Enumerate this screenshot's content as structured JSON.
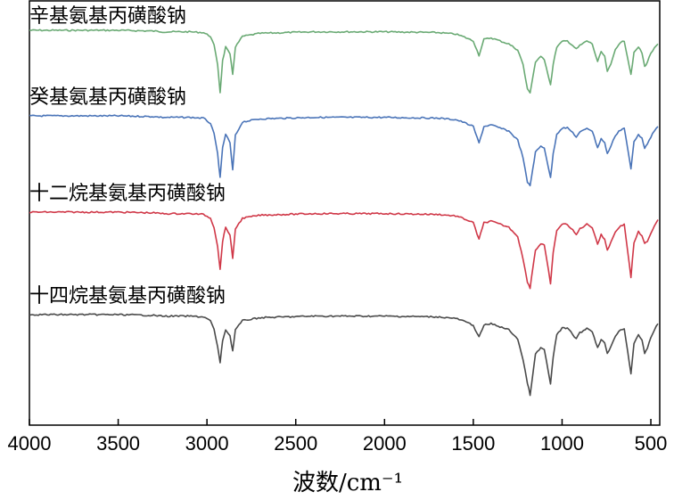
{
  "chart_data": {
    "type": "line",
    "title": "",
    "xlabel": "波数/cm⁻¹",
    "ylabel": "",
    "xlim": [
      4000,
      450
    ],
    "x_reversed": true,
    "x_ticks": [
      4000,
      3500,
      3000,
      2500,
      2000,
      1500,
      1000,
      500
    ],
    "y_ticks_shown": false,
    "grid": false,
    "legend": "inline labels above each trace",
    "series": [
      {
        "name": "辛基氨基丙磺酸钠",
        "color": "#6aaa74",
        "baseline": 0.0,
        "points": [
          [
            4000,
            0
          ],
          [
            3500,
            0
          ],
          [
            3300,
            -1
          ],
          [
            3250,
            -2
          ],
          [
            3100,
            -2
          ],
          [
            3020,
            -3
          ],
          [
            2980,
            -8
          ],
          [
            2960,
            -20
          ],
          [
            2940,
            -45
          ],
          [
            2926,
            -82
          ],
          [
            2912,
            -40
          ],
          [
            2895,
            -22
          ],
          [
            2870,
            -32
          ],
          [
            2855,
            -58
          ],
          [
            2840,
            -22
          ],
          [
            2800,
            -8
          ],
          [
            2700,
            -4
          ],
          [
            2400,
            -2
          ],
          [
            2000,
            -2
          ],
          [
            1700,
            -3
          ],
          [
            1600,
            -5
          ],
          [
            1560,
            -8
          ],
          [
            1500,
            -14
          ],
          [
            1468,
            -33
          ],
          [
            1440,
            -12
          ],
          [
            1400,
            -10
          ],
          [
            1350,
            -14
          ],
          [
            1300,
            -18
          ],
          [
            1250,
            -26
          ],
          [
            1220,
            -45
          ],
          [
            1195,
            -78
          ],
          [
            1180,
            -82
          ],
          [
            1165,
            -62
          ],
          [
            1150,
            -42
          ],
          [
            1120,
            -35
          ],
          [
            1100,
            -38
          ],
          [
            1065,
            -72
          ],
          [
            1050,
            -45
          ],
          [
            1030,
            -22
          ],
          [
            1000,
            -15
          ],
          [
            970,
            -14
          ],
          [
            940,
            -20
          ],
          [
            920,
            -25
          ],
          [
            900,
            -20
          ],
          [
            860,
            -14
          ],
          [
            830,
            -18
          ],
          [
            800,
            -42
          ],
          [
            780,
            -28
          ],
          [
            760,
            -35
          ],
          [
            745,
            -55
          ],
          [
            725,
            -45
          ],
          [
            700,
            -25
          ],
          [
            680,
            -18
          ],
          [
            650,
            -14
          ],
          [
            612,
            -58
          ],
          [
            595,
            -30
          ],
          [
            570,
            -22
          ],
          [
            550,
            -30
          ],
          [
            535,
            -48
          ],
          [
            520,
            -42
          ],
          [
            500,
            -30
          ],
          [
            480,
            -24
          ],
          [
            460,
            -18
          ]
        ]
      },
      {
        "name": "癸基氨基丙磺酸钠",
        "color": "#4a74b8",
        "baseline": 0.0,
        "points": [
          [
            4000,
            0
          ],
          [
            3500,
            0
          ],
          [
            3300,
            -1
          ],
          [
            3250,
            -2
          ],
          [
            3100,
            -2
          ],
          [
            3020,
            -3
          ],
          [
            2980,
            -10
          ],
          [
            2960,
            -24
          ],
          [
            2940,
            -50
          ],
          [
            2926,
            -82
          ],
          [
            2912,
            -42
          ],
          [
            2895,
            -24
          ],
          [
            2870,
            -36
          ],
          [
            2855,
            -72
          ],
          [
            2840,
            -26
          ],
          [
            2800,
            -8
          ],
          [
            2700,
            -4
          ],
          [
            2400,
            -2
          ],
          [
            2000,
            -2
          ],
          [
            1700,
            -3
          ],
          [
            1600,
            -5
          ],
          [
            1560,
            -8
          ],
          [
            1500,
            -14
          ],
          [
            1468,
            -36
          ],
          [
            1440,
            -14
          ],
          [
            1400,
            -12
          ],
          [
            1350,
            -16
          ],
          [
            1300,
            -20
          ],
          [
            1250,
            -32
          ],
          [
            1220,
            -55
          ],
          [
            1195,
            -88
          ],
          [
            1180,
            -92
          ],
          [
            1165,
            -70
          ],
          [
            1150,
            -48
          ],
          [
            1120,
            -40
          ],
          [
            1100,
            -42
          ],
          [
            1065,
            -82
          ],
          [
            1050,
            -50
          ],
          [
            1030,
            -24
          ],
          [
            1000,
            -16
          ],
          [
            970,
            -16
          ],
          [
            940,
            -22
          ],
          [
            920,
            -28
          ],
          [
            900,
            -22
          ],
          [
            860,
            -16
          ],
          [
            830,
            -20
          ],
          [
            800,
            -42
          ],
          [
            780,
            -30
          ],
          [
            760,
            -36
          ],
          [
            745,
            -50
          ],
          [
            725,
            -40
          ],
          [
            700,
            -26
          ],
          [
            680,
            -20
          ],
          [
            650,
            -16
          ],
          [
            612,
            -70
          ],
          [
            595,
            -34
          ],
          [
            570,
            -24
          ],
          [
            550,
            -30
          ],
          [
            535,
            -42
          ],
          [
            520,
            -38
          ],
          [
            500,
            -28
          ],
          [
            480,
            -20
          ],
          [
            460,
            -14
          ]
        ]
      },
      {
        "name": "十二烷基氨基丙磺酸钠",
        "color": "#d03848",
        "baseline": 0.0,
        "points": [
          [
            4000,
            0
          ],
          [
            3500,
            0
          ],
          [
            3300,
            -1
          ],
          [
            3250,
            -2
          ],
          [
            3100,
            -2
          ],
          [
            3020,
            -3
          ],
          [
            2980,
            -8
          ],
          [
            2960,
            -20
          ],
          [
            2940,
            -45
          ],
          [
            2926,
            -76
          ],
          [
            2912,
            -38
          ],
          [
            2895,
            -20
          ],
          [
            2870,
            -30
          ],
          [
            2855,
            -62
          ],
          [
            2840,
            -22
          ],
          [
            2800,
            -8
          ],
          [
            2700,
            -4
          ],
          [
            2400,
            -2
          ],
          [
            2000,
            -2
          ],
          [
            1700,
            -3
          ],
          [
            1600,
            -5
          ],
          [
            1560,
            -8
          ],
          [
            1500,
            -14
          ],
          [
            1468,
            -36
          ],
          [
            1440,
            -14
          ],
          [
            1400,
            -12
          ],
          [
            1350,
            -16
          ],
          [
            1300,
            -20
          ],
          [
            1250,
            -32
          ],
          [
            1220,
            -62
          ],
          [
            1195,
            -92
          ],
          [
            1180,
            -100
          ],
          [
            1165,
            -74
          ],
          [
            1150,
            -50
          ],
          [
            1120,
            -42
          ],
          [
            1100,
            -44
          ],
          [
            1065,
            -94
          ],
          [
            1050,
            -54
          ],
          [
            1030,
            -24
          ],
          [
            1000,
            -16
          ],
          [
            970,
            -16
          ],
          [
            940,
            -24
          ],
          [
            920,
            -30
          ],
          [
            900,
            -22
          ],
          [
            860,
            -16
          ],
          [
            830,
            -20
          ],
          [
            800,
            -42
          ],
          [
            780,
            -30
          ],
          [
            760,
            -36
          ],
          [
            745,
            -50
          ],
          [
            725,
            -40
          ],
          [
            700,
            -26
          ],
          [
            680,
            -20
          ],
          [
            650,
            -16
          ],
          [
            612,
            -86
          ],
          [
            595,
            -40
          ],
          [
            570,
            -26
          ],
          [
            550,
            -32
          ],
          [
            535,
            -42
          ],
          [
            520,
            -38
          ],
          [
            500,
            -28
          ],
          [
            480,
            -18
          ],
          [
            460,
            -10
          ]
        ]
      },
      {
        "name": "十四烷基氨基丙磺酸钠",
        "color": "#4a4a4a",
        "baseline": 0.0,
        "points": [
          [
            4000,
            0
          ],
          [
            3500,
            0
          ],
          [
            3300,
            -1
          ],
          [
            3250,
            -2
          ],
          [
            3100,
            -2
          ],
          [
            3020,
            -3
          ],
          [
            2980,
            -8
          ],
          [
            2960,
            -20
          ],
          [
            2940,
            -42
          ],
          [
            2926,
            -64
          ],
          [
            2912,
            -34
          ],
          [
            2895,
            -20
          ],
          [
            2870,
            -28
          ],
          [
            2855,
            -48
          ],
          [
            2840,
            -20
          ],
          [
            2800,
            -8
          ],
          [
            2700,
            -4
          ],
          [
            2400,
            -2
          ],
          [
            2000,
            -2
          ],
          [
            1700,
            -3
          ],
          [
            1600,
            -5
          ],
          [
            1560,
            -8
          ],
          [
            1500,
            -14
          ],
          [
            1468,
            -30
          ],
          [
            1440,
            -14
          ],
          [
            1400,
            -12
          ],
          [
            1350,
            -16
          ],
          [
            1300,
            -20
          ],
          [
            1250,
            -32
          ],
          [
            1220,
            -60
          ],
          [
            1195,
            -90
          ],
          [
            1180,
            -106
          ],
          [
            1165,
            -80
          ],
          [
            1150,
            -52
          ],
          [
            1120,
            -44
          ],
          [
            1100,
            -46
          ],
          [
            1065,
            -92
          ],
          [
            1050,
            -56
          ],
          [
            1030,
            -26
          ],
          [
            1000,
            -18
          ],
          [
            970,
            -18
          ],
          [
            940,
            -26
          ],
          [
            920,
            -32
          ],
          [
            900,
            -24
          ],
          [
            860,
            -18
          ],
          [
            830,
            -22
          ],
          [
            800,
            -44
          ],
          [
            780,
            -32
          ],
          [
            760,
            -38
          ],
          [
            745,
            -52
          ],
          [
            725,
            -42
          ],
          [
            700,
            -28
          ],
          [
            680,
            -22
          ],
          [
            650,
            -18
          ],
          [
            612,
            -78
          ],
          [
            595,
            -38
          ],
          [
            570,
            -26
          ],
          [
            550,
            -34
          ],
          [
            535,
            -52
          ],
          [
            520,
            -44
          ],
          [
            500,
            -30
          ],
          [
            480,
            -20
          ],
          [
            460,
            -12
          ]
        ]
      }
    ]
  }
}
